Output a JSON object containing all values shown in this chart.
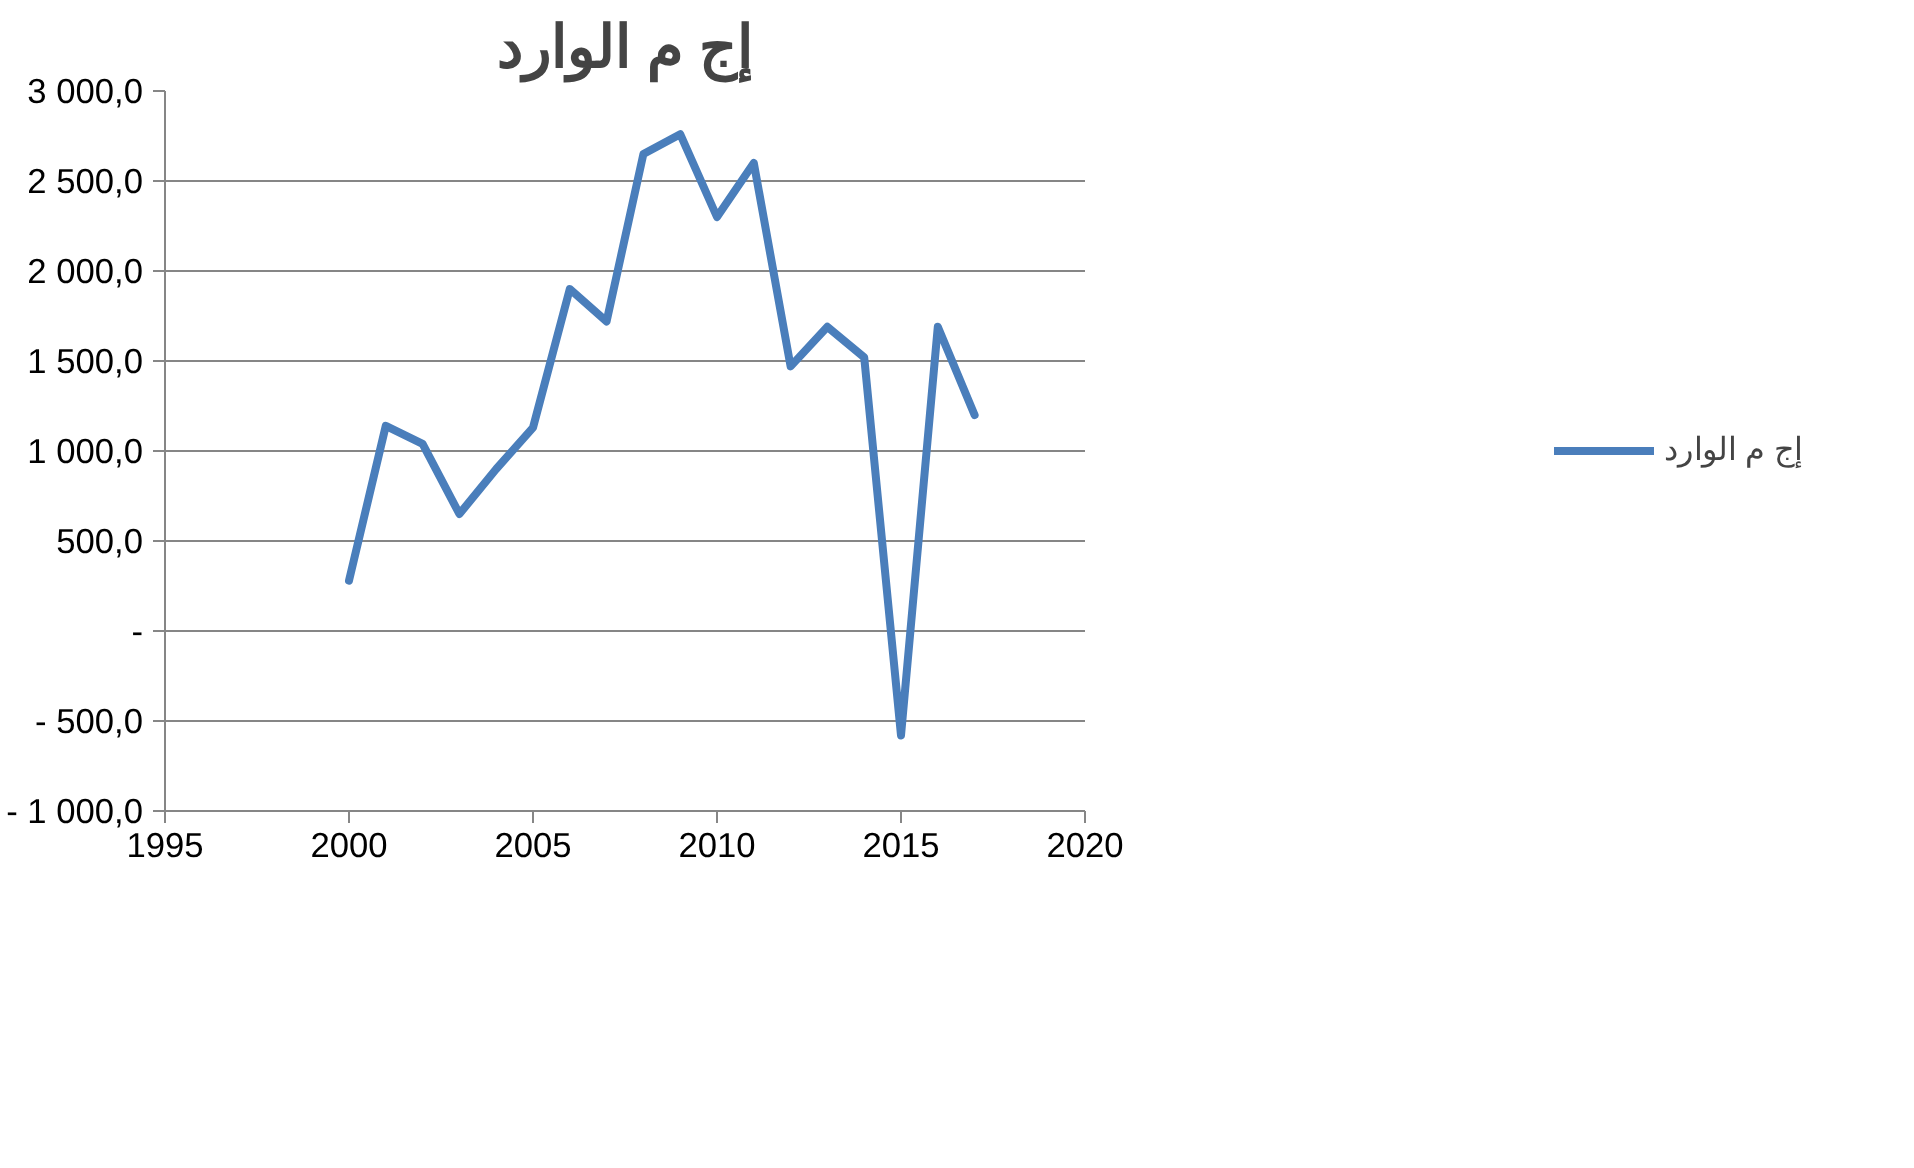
{
  "chart_data": {
    "type": "line",
    "title": "إج م الوارد",
    "x": [
      2000,
      2001,
      2002,
      2003,
      2004,
      2005,
      2006,
      2007,
      2008,
      2009,
      2010,
      2011,
      2012,
      2013,
      2014,
      2015,
      2016,
      2017
    ],
    "series": [
      {
        "name": "إج م الوارد",
        "color": "#4a7ebb",
        "values": [
          280,
          1140,
          1040,
          650,
          900,
          1130,
          1900,
          1720,
          2650,
          2760,
          2300,
          2600,
          1470,
          1690,
          1520,
          -580,
          1690,
          1200
        ]
      }
    ],
    "xlim": [
      1995,
      2020
    ],
    "xticks": [
      1995,
      2000,
      2005,
      2010,
      2015,
      2020
    ],
    "ylim": [
      -1000,
      3000
    ],
    "yticks": [
      {
        "value": -1000,
        "label": "- 1 000,0"
      },
      {
        "value": -500,
        "label": "- 500,0"
      },
      {
        "value": 0,
        "label": "-"
      },
      {
        "value": 500,
        "label": "500,0"
      },
      {
        "value": 1000,
        "label": "1 000,0"
      },
      {
        "value": 1500,
        "label": "1 500,0"
      },
      {
        "value": 2000,
        "label": "2 000,0"
      },
      {
        "value": 2500,
        "label": "2 500,0"
      },
      {
        "value": 3000,
        "label": "3 000,0"
      }
    ],
    "grid": "y",
    "legend": "right",
    "marker": "none",
    "line_style": "solid"
  }
}
